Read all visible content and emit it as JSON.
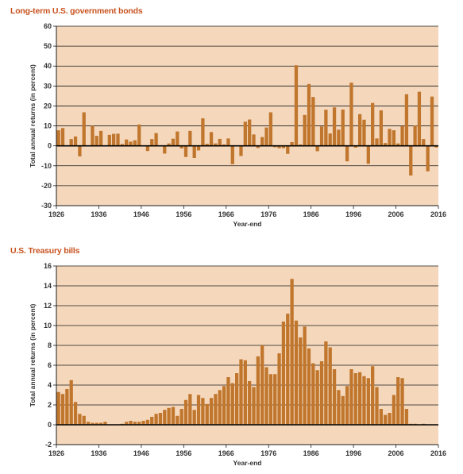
{
  "colors": {
    "panel_bg": "#f5d8bc",
    "bar": "#c0762d",
    "grid": "#1a1a1a",
    "zero_line": "#000000",
    "title": "#c8521f",
    "text": "#333333"
  },
  "chart_data": [
    {
      "type": "bar",
      "title": "Long-term U.S. government bonds",
      "xlabel": "Year-end",
      "ylabel": "Total annual returns (in percent)",
      "ylim": [
        -30,
        60
      ],
      "yticks": [
        60,
        50,
        40,
        30,
        20,
        10,
        0,
        -10,
        -20,
        -30
      ],
      "xlim": [
        1926,
        2016
      ],
      "xticks": [
        1926,
        1936,
        1946,
        1956,
        1966,
        1976,
        1986,
        1996,
        2006,
        2016
      ],
      "grid": true,
      "x": [
        1926,
        1927,
        1928,
        1929,
        1930,
        1931,
        1932,
        1933,
        1934,
        1935,
        1936,
        1937,
        1938,
        1939,
        1940,
        1941,
        1942,
        1943,
        1944,
        1945,
        1946,
        1947,
        1948,
        1949,
        1950,
        1951,
        1952,
        1953,
        1954,
        1955,
        1956,
        1957,
        1958,
        1959,
        1960,
        1961,
        1962,
        1963,
        1964,
        1965,
        1966,
        1967,
        1968,
        1969,
        1970,
        1971,
        1972,
        1973,
        1974,
        1975,
        1976,
        1977,
        1978,
        1979,
        1980,
        1981,
        1982,
        1983,
        1984,
        1985,
        1986,
        1987,
        1988,
        1989,
        1990,
        1991,
        1992,
        1993,
        1994,
        1995,
        1996,
        1997,
        1998,
        1999,
        2000,
        2001,
        2002,
        2003,
        2004,
        2005,
        2006,
        2007,
        2008,
        2009,
        2010,
        2011,
        2012,
        2013,
        2014,
        2015
      ],
      "values": [
        7.8,
        8.9,
        0.1,
        3.4,
        4.7,
        -5.3,
        16.8,
        -0.1,
        10.0,
        5.0,
        7.5,
        0.2,
        5.5,
        6.0,
        6.1,
        0.9,
        3.2,
        2.1,
        2.8,
        10.7,
        -0.1,
        -2.6,
        3.4,
        6.4,
        0.1,
        -3.9,
        1.2,
        3.6,
        7.2,
        -1.3,
        -5.6,
        7.5,
        -6.1,
        -2.3,
        13.8,
        1.0,
        6.9,
        1.2,
        3.5,
        0.7,
        3.7,
        -9.2,
        -0.3,
        -5.1,
        12.1,
        13.2,
        5.7,
        -1.1,
        4.4,
        9.2,
        16.8,
        -0.7,
        -1.2,
        -1.2,
        -4.0,
        1.9,
        40.4,
        0.7,
        15.5,
        31.0,
        24.5,
        -2.7,
        9.7,
        18.1,
        6.2,
        19.3,
        8.1,
        18.2,
        -7.8,
        31.7,
        -0.9,
        15.9,
        13.1,
        -9.0,
        21.5,
        3.7,
        17.8,
        1.4,
        8.5,
        7.8,
        1.2,
        9.9,
        25.9,
        -14.9,
        10.1,
        27.1,
        3.4,
        -12.8,
        24.7,
        -0.8
      ]
    },
    {
      "type": "bar",
      "title": "U.S. Treasury bills",
      "xlabel": "Year-end",
      "ylabel": "Total annual returns (in percent)",
      "ylim": [
        -2,
        16
      ],
      "yticks": [
        16,
        14,
        12,
        10,
        8,
        6,
        4,
        2,
        0,
        -2
      ],
      "xlim": [
        1926,
        2016
      ],
      "xticks": [
        1926,
        1936,
        1946,
        1956,
        1966,
        1976,
        1986,
        1996,
        2006,
        2016
      ],
      "grid": true,
      "x": [
        1926,
        1927,
        1928,
        1929,
        1930,
        1931,
        1932,
        1933,
        1934,
        1935,
        1936,
        1937,
        1938,
        1939,
        1940,
        1941,
        1942,
        1943,
        1944,
        1945,
        1946,
        1947,
        1948,
        1949,
        1950,
        1951,
        1952,
        1953,
        1954,
        1955,
        1956,
        1957,
        1958,
        1959,
        1960,
        1961,
        1962,
        1963,
        1964,
        1965,
        1966,
        1967,
        1968,
        1969,
        1970,
        1971,
        1972,
        1973,
        1974,
        1975,
        1976,
        1977,
        1978,
        1979,
        1980,
        1981,
        1982,
        1983,
        1984,
        1985,
        1986,
        1987,
        1988,
        1989,
        1990,
        1991,
        1992,
        1993,
        1994,
        1995,
        1996,
        1997,
        1998,
        1999,
        2000,
        2001,
        2002,
        2003,
        2004,
        2005,
        2006,
        2007,
        2008,
        2009,
        2010,
        2011,
        2012,
        2013,
        2014,
        2015
      ],
      "values": [
        3.3,
        3.1,
        3.6,
        4.5,
        2.3,
        1.1,
        0.9,
        0.3,
        0.2,
        0.2,
        0.2,
        0.3,
        0.0,
        0.0,
        0.0,
        0.1,
        0.3,
        0.4,
        0.3,
        0.3,
        0.4,
        0.5,
        0.8,
        1.1,
        1.2,
        1.5,
        1.7,
        1.8,
        0.9,
        1.6,
        2.5,
        3.1,
        1.5,
        3.0,
        2.7,
        2.1,
        2.7,
        3.1,
        3.5,
        3.9,
        4.8,
        4.2,
        5.2,
        6.6,
        6.5,
        4.4,
        3.8,
        6.9,
        8.0,
        5.8,
        5.1,
        5.1,
        7.2,
        10.4,
        11.2,
        14.7,
        10.5,
        8.8,
        9.9,
        7.7,
        6.2,
        5.5,
        6.4,
        8.4,
        7.8,
        5.6,
        3.5,
        2.9,
        3.9,
        5.6,
        5.2,
        5.3,
        4.9,
        4.7,
        5.9,
        3.8,
        1.6,
        1.0,
        1.2,
        3.0,
        4.8,
        4.7,
        1.6,
        0.1,
        0.1,
        0.0,
        0.1,
        0.0,
        0.0,
        0.0
      ]
    }
  ]
}
